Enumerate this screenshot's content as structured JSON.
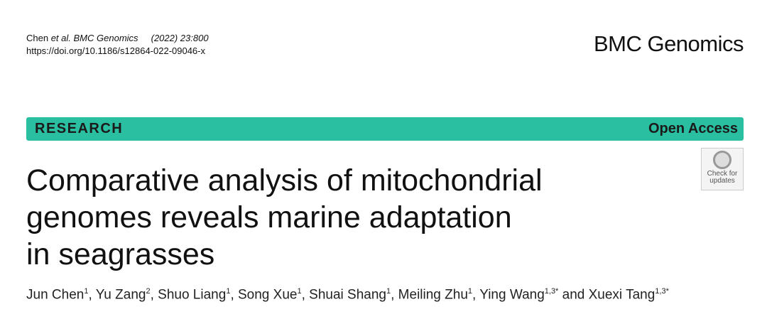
{
  "header": {
    "citation": {
      "author": "Chen",
      "etal": "et al.",
      "journal": "BMC Genomics",
      "issue": "(2022) 23:800"
    },
    "doi": "https://doi.org/10.1186/s12864-022-09046-x",
    "logo": "BMC Genomics"
  },
  "banner": {
    "type": "RESEARCH",
    "access": "Open Access"
  },
  "badge": {
    "line1": "Check for",
    "line2": "updates"
  },
  "title": {
    "lines": [
      "Comparative analysis of mitochondrial",
      "genomes reveals marine adaptation",
      "in seagrasses"
    ]
  },
  "authors": [
    {
      "name": "Jun Chen",
      "sup": "1",
      "after": ", "
    },
    {
      "name": "Yu Zang",
      "sup": "2",
      "after": ", "
    },
    {
      "name": "Shuo Liang",
      "sup": "1",
      "after": ", "
    },
    {
      "name": "Song Xue",
      "sup": "1",
      "after": ", "
    },
    {
      "name": "Shuai Shang",
      "sup": "1",
      "after": ", "
    },
    {
      "name": "Meiling Zhu",
      "sup": "1",
      "after": ", "
    },
    {
      "name": "Ying Wang",
      "sup": "1,3*",
      "after": " and "
    },
    {
      "name": "Xuexi Tang",
      "sup": "1,3*"
    }
  ]
}
